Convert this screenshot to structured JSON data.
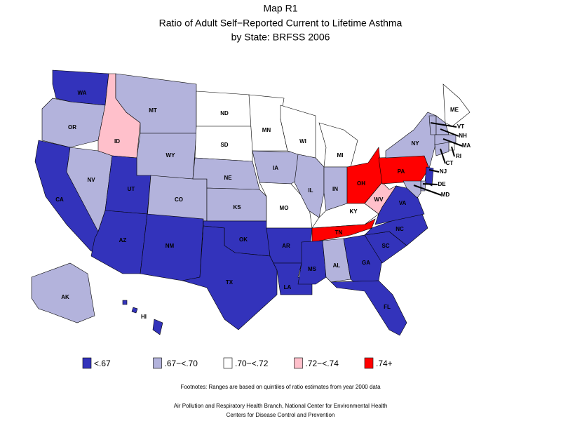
{
  "header": {
    "title": "Map R1",
    "subtitle": "Ratio of Adult Self−Reported Current to Lifetime Asthma",
    "subtitle2": "by State: BRFSS 2006"
  },
  "legend": [
    {
      "label": "<.67",
      "color": "#3333bb"
    },
    {
      "label": ".67−<.70",
      "color": "#b3b3dc"
    },
    {
      "label": ".70−<.72",
      "color": "#ffffff"
    },
    {
      "label": ".72−<.74",
      "color": "#ffc0cb"
    },
    {
      "label": ".74+",
      "color": "#ff0000"
    }
  ],
  "states": [
    {
      "abbr": "WA",
      "class": 0
    },
    {
      "abbr": "OR",
      "class": 1
    },
    {
      "abbr": "CA",
      "class": 0
    },
    {
      "abbr": "NV",
      "class": 1
    },
    {
      "abbr": "ID",
      "class": 3
    },
    {
      "abbr": "MT",
      "class": 1
    },
    {
      "abbr": "WY",
      "class": 1
    },
    {
      "abbr": "UT",
      "class": 0
    },
    {
      "abbr": "CO",
      "class": 1
    },
    {
      "abbr": "AZ",
      "class": 0
    },
    {
      "abbr": "NM",
      "class": 0
    },
    {
      "abbr": "ND",
      "class": 2
    },
    {
      "abbr": "SD",
      "class": 2
    },
    {
      "abbr": "NE",
      "class": 1
    },
    {
      "abbr": "KS",
      "class": 1
    },
    {
      "abbr": "OK",
      "class": 0
    },
    {
      "abbr": "TX",
      "class": 0
    },
    {
      "abbr": "MN",
      "class": 2
    },
    {
      "abbr": "IA",
      "class": 1
    },
    {
      "abbr": "MO",
      "class": 2
    },
    {
      "abbr": "AR",
      "class": 0
    },
    {
      "abbr": "LA",
      "class": 0
    },
    {
      "abbr": "WI",
      "class": 2
    },
    {
      "abbr": "IL",
      "class": 1
    },
    {
      "abbr": "MI",
      "class": 2
    },
    {
      "abbr": "IN",
      "class": 1
    },
    {
      "abbr": "OH",
      "class": 4
    },
    {
      "abbr": "KY",
      "class": 2
    },
    {
      "abbr": "TN",
      "class": 4
    },
    {
      "abbr": "MS",
      "class": 0
    },
    {
      "abbr": "AL",
      "class": 1
    },
    {
      "abbr": "GA",
      "class": 0
    },
    {
      "abbr": "FL",
      "class": 0
    },
    {
      "abbr": "SC",
      "class": 0
    },
    {
      "abbr": "NC",
      "class": 0
    },
    {
      "abbr": "VA",
      "class": 0
    },
    {
      "abbr": "WV",
      "class": 3
    },
    {
      "abbr": "PA",
      "class": 4
    },
    {
      "abbr": "NY",
      "class": 1
    },
    {
      "abbr": "ME",
      "class": 2
    },
    {
      "abbr": "VT",
      "class": 1
    },
    {
      "abbr": "NH",
      "class": 1
    },
    {
      "abbr": "MA",
      "class": 1
    },
    {
      "abbr": "RI",
      "class": 2
    },
    {
      "abbr": "CT",
      "class": 1
    },
    {
      "abbr": "NJ",
      "class": 0
    },
    {
      "abbr": "DE",
      "class": 1
    },
    {
      "abbr": "MD",
      "class": 1
    },
    {
      "abbr": "AK",
      "class": 1
    },
    {
      "abbr": "HI",
      "class": 0
    }
  ],
  "footnotes": [
    "Footnotes: Ranges are based on quintiles of ratio estimates from year 2000 data",
    "Air Pollution and Respiratory Health Branch, National Center for Environmental Health",
    "Centers for Disease Control and Prevention"
  ]
}
